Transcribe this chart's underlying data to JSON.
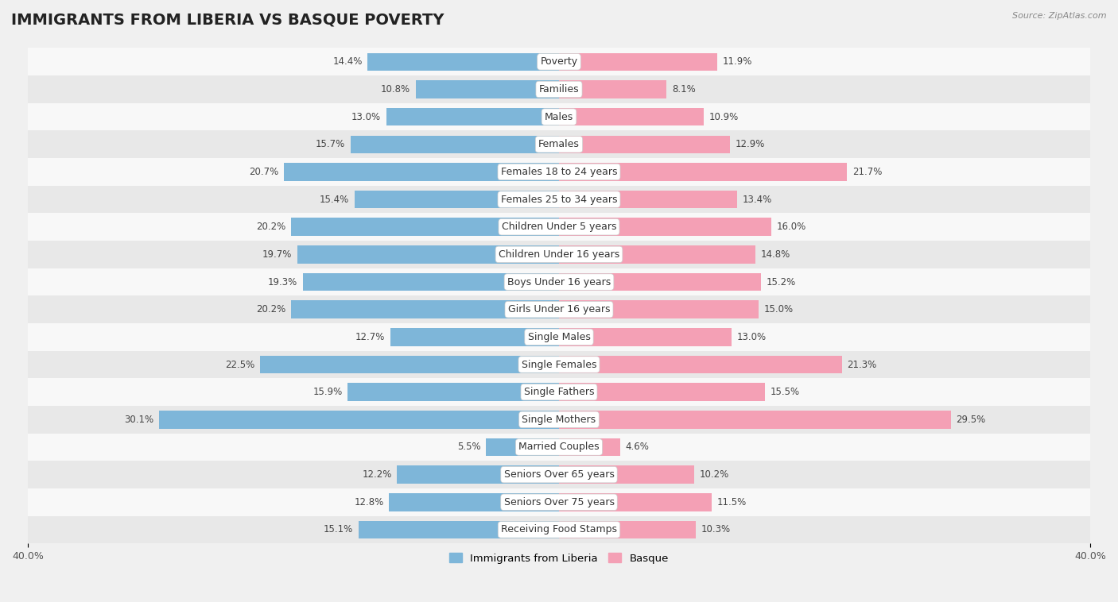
{
  "title": "IMMIGRANTS FROM LIBERIA VS BASQUE POVERTY",
  "source": "Source: ZipAtlas.com",
  "categories": [
    "Poverty",
    "Families",
    "Males",
    "Females",
    "Females 18 to 24 years",
    "Females 25 to 34 years",
    "Children Under 5 years",
    "Children Under 16 years",
    "Boys Under 16 years",
    "Girls Under 16 years",
    "Single Males",
    "Single Females",
    "Single Fathers",
    "Single Mothers",
    "Married Couples",
    "Seniors Over 65 years",
    "Seniors Over 75 years",
    "Receiving Food Stamps"
  ],
  "liberia_values": [
    14.4,
    10.8,
    13.0,
    15.7,
    20.7,
    15.4,
    20.2,
    19.7,
    19.3,
    20.2,
    12.7,
    22.5,
    15.9,
    30.1,
    5.5,
    12.2,
    12.8,
    15.1
  ],
  "basque_values": [
    11.9,
    8.1,
    10.9,
    12.9,
    21.7,
    13.4,
    16.0,
    14.8,
    15.2,
    15.0,
    13.0,
    21.3,
    15.5,
    29.5,
    4.6,
    10.2,
    11.5,
    10.3
  ],
  "liberia_color": "#7eb6d9",
  "basque_color": "#f4a0b5",
  "liberia_label": "Immigrants from Liberia",
  "basque_label": "Basque",
  "xlim": 40.0,
  "background_color": "#f0f0f0",
  "row_color_light": "#f8f8f8",
  "row_color_dark": "#e8e8e8",
  "bar_height": 0.65,
  "title_fontsize": 14,
  "label_fontsize": 9,
  "value_fontsize": 8.5,
  "axis_label_fontsize": 9
}
